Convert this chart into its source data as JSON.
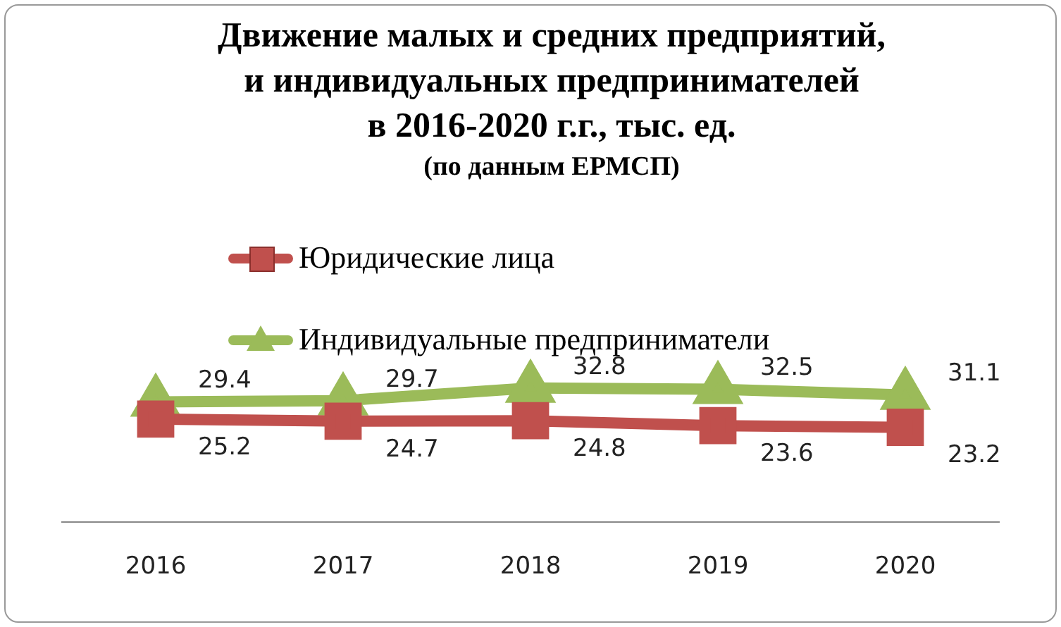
{
  "chart_data": {
    "type": "line",
    "title": "Движение малых и средних предприятий,\nи индивидуальных предпринимателей\nв 2016-2020 г.г., тыс. ед.",
    "subtitle": "(по данным ЕРМСП)",
    "categories": [
      "2016",
      "2017",
      "2018",
      "2019",
      "2020"
    ],
    "series": [
      {
        "name": "Юридические лица",
        "color": "#c0504d",
        "marker": "square",
        "values": [
          25.2,
          24.7,
          24.8,
          23.6,
          23.2
        ]
      },
      {
        "name": "Индивидуальные предприниматели",
        "color": "#9bbb59",
        "marker": "triangle",
        "values": [
          29.4,
          29.7,
          32.8,
          32.5,
          31.1
        ]
      }
    ],
    "data_labels": true,
    "legend": "top",
    "grid": false
  }
}
